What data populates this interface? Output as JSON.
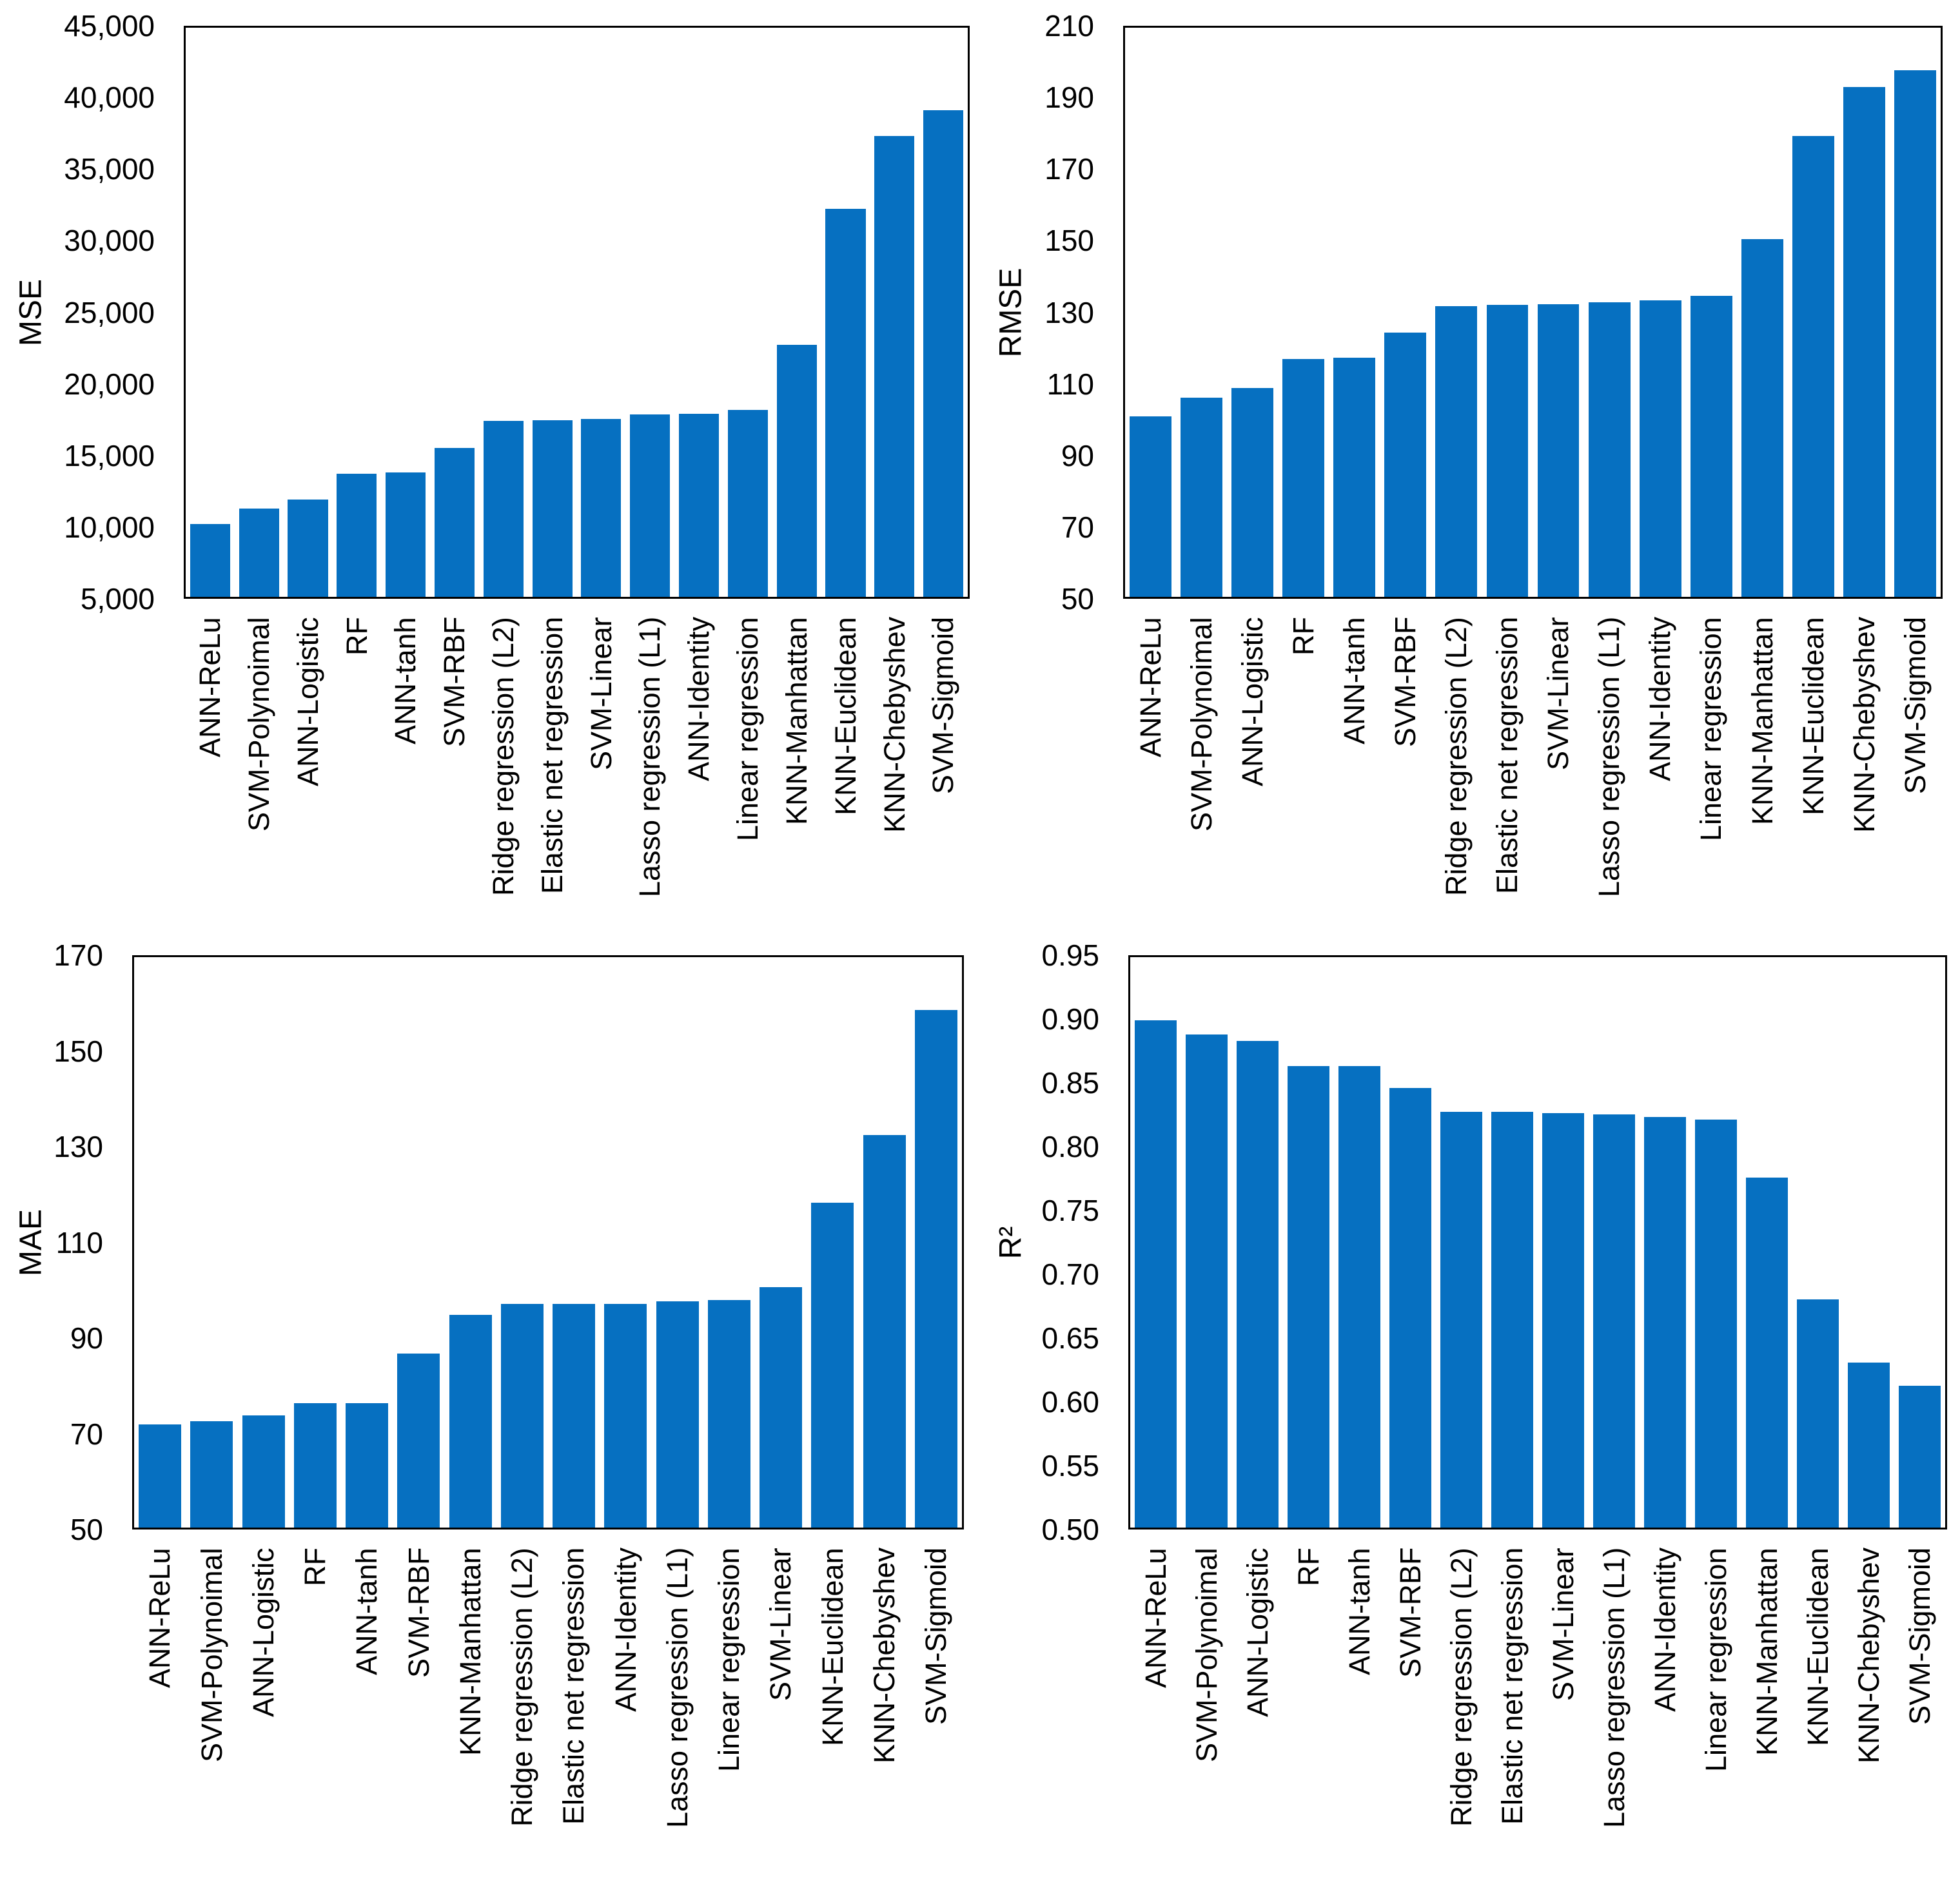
{
  "figure": {
    "background_color": "#ffffff",
    "bar_color": "#0670C1",
    "axis_color": "#000000",
    "text_color": "#000000"
  },
  "chart_data": [
    {
      "id": "mse",
      "type": "bar",
      "title": "",
      "xlabel": "",
      "ylabel": "MSE",
      "ylim": [
        5000,
        45000
      ],
      "grid": false,
      "legend_position": "none",
      "ytick_values": [
        5000,
        10000,
        15000,
        20000,
        25000,
        30000,
        35000,
        40000,
        45000
      ],
      "ytick_labels": [
        "5,000",
        "10,000",
        "15,000",
        "20,000",
        "25,000",
        "30,000",
        "35,000",
        "40,000",
        "45,000"
      ],
      "categories": [
        "ANN-ReLu",
        "SVM-Polynoimal",
        "ANN-Logistic",
        "RF",
        "ANN-tanh",
        "SVM-RBF",
        "Ridge regression (L2)",
        "Elastic net regression",
        "SVM-Linear",
        "Lasso regression (L1)",
        "ANN-Identity",
        "Linear regression",
        "KNN-Manhattan",
        "KNN-Euclidean",
        "KNN-Chebyshev",
        "SVM-Sigmoid"
      ],
      "values": [
        10100,
        11200,
        11850,
        13650,
        13750,
        15450,
        17350,
        17400,
        17500,
        17800,
        17850,
        18150,
        22700,
        32250,
        37400,
        39200
      ]
    },
    {
      "id": "rmse",
      "type": "bar",
      "title": "",
      "xlabel": "",
      "ylabel": "RMSE",
      "ylim": [
        50,
        210
      ],
      "grid": false,
      "legend_position": "none",
      "ytick_values": [
        50,
        70,
        90,
        110,
        130,
        150,
        170,
        190,
        210
      ],
      "ytick_labels": [
        "50",
        "70",
        "90",
        "110",
        "130",
        "150",
        "170",
        "190",
        "210"
      ],
      "categories": [
        "ANN-ReLu",
        "SVM-Polynoimal",
        "ANN-Logistic",
        "RF",
        "ANN-tanh",
        "SVM-RBF",
        "Ridge regression (L2)",
        "Elastic net regression",
        "SVM-Linear",
        "Lasso regression (L1)",
        "ANN-Identity",
        "Linear regression",
        "KNN-Manhattan",
        "KNN-Euclidean",
        "KNN-Chebyshev",
        "SVM-Sigmoid"
      ],
      "values": [
        100.7,
        106.0,
        108.8,
        116.8,
        117.3,
        124.3,
        131.7,
        132.0,
        132.3,
        132.9,
        133.4,
        134.7,
        150.5,
        179.6,
        193.4,
        198.0
      ]
    },
    {
      "id": "mae",
      "type": "bar",
      "title": "",
      "xlabel": "",
      "ylabel": "MAE",
      "ylim": [
        50,
        170
      ],
      "grid": false,
      "legend_position": "none",
      "ytick_values": [
        50,
        70,
        90,
        110,
        130,
        150,
        170
      ],
      "ytick_labels": [
        "50",
        "70",
        "90",
        "110",
        "130",
        "150",
        "170"
      ],
      "categories": [
        "ANN-ReLu",
        "SVM-Polynoimal",
        "ANN-Logistic",
        "RF",
        "ANN-tanh",
        "SVM-RBF",
        "KNN-Manhattan",
        "Ridge regression (L2)",
        "Elastic net regression",
        "ANN-Identity",
        "Lasso regression (L1)",
        "Linear regression",
        "SVM-Linear",
        "KNN-Euclidean",
        "KNN-Chebyshev",
        "SVM-Sigmoid"
      ],
      "values": [
        71.7,
        72.4,
        73.6,
        76.2,
        76.2,
        86.6,
        94.7,
        97.0,
        97.1,
        97.1,
        97.6,
        97.8,
        100.6,
        118.3,
        132.6,
        158.9
      ]
    },
    {
      "id": "r2",
      "type": "bar",
      "title": "",
      "xlabel": "",
      "ylabel": "R²",
      "ylim": [
        0.5,
        0.95
      ],
      "grid": false,
      "legend_position": "none",
      "ytick_values": [
        0.5,
        0.55,
        0.6,
        0.65,
        0.7,
        0.75,
        0.8,
        0.85,
        0.9,
        0.95
      ],
      "ytick_labels": [
        "0.50",
        "0.55",
        "0.60",
        "0.65",
        "0.70",
        "0.75",
        "0.80",
        "0.85",
        "0.90",
        "0.95"
      ],
      "categories": [
        "ANN-ReLu",
        "SVM-Polynoimal",
        "ANN-Logistic",
        "RF",
        "ANN-tanh",
        "SVM-RBF",
        "Ridge regression (L2)",
        "Elastic net regression",
        "SVM-Linear",
        "Lasso regression (L1)",
        "ANN-Identity",
        "Linear regression",
        "KNN-Manhattan",
        "KNN-Euclidean",
        "KNN-Chebyshev",
        "SVM-Sigmoid"
      ],
      "values": [
        0.9,
        0.889,
        0.884,
        0.864,
        0.864,
        0.847,
        0.828,
        0.828,
        0.827,
        0.826,
        0.824,
        0.822,
        0.776,
        0.68,
        0.63,
        0.612
      ]
    }
  ]
}
